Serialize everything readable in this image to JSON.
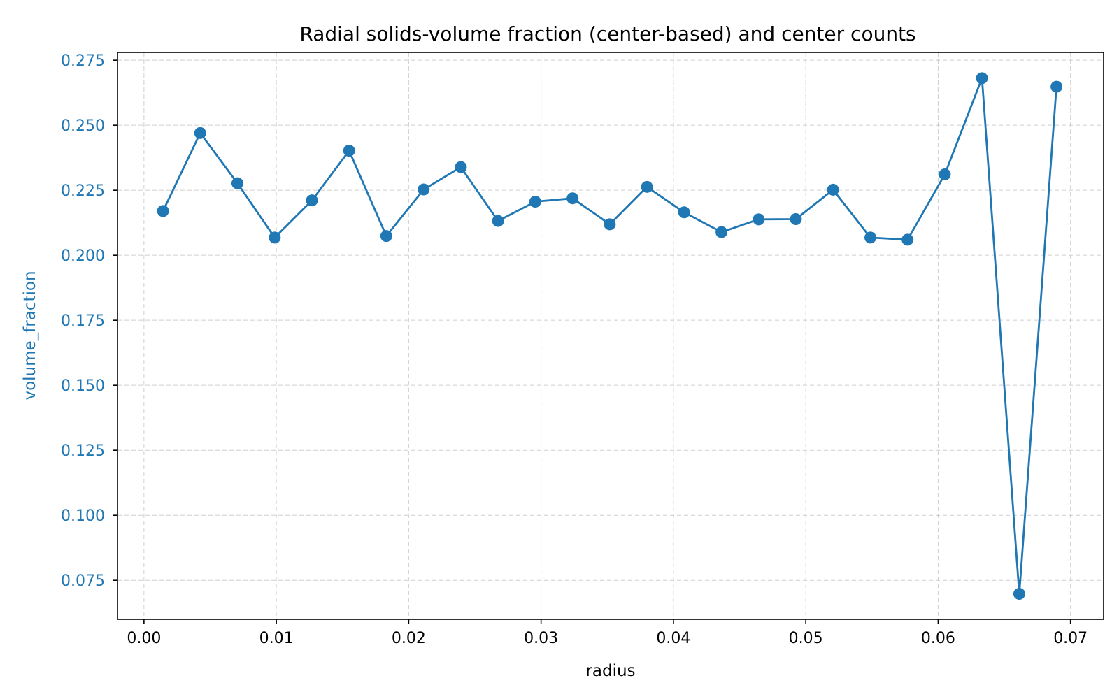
{
  "chart_data": {
    "type": "line",
    "title": "Radial solids-volume fraction (center-based) and center counts",
    "xlabel": "radius",
    "ylabel": "volume_fraction",
    "xlim": [
      -0.002,
      0.0725
    ],
    "ylim": [
      0.06,
      0.278
    ],
    "x_ticks": [
      0.0,
      0.01,
      0.02,
      0.03,
      0.04,
      0.05,
      0.06,
      0.07
    ],
    "x_tick_labels": [
      "0.00",
      "0.01",
      "0.02",
      "0.03",
      "0.04",
      "0.05",
      "0.06",
      "0.07"
    ],
    "y_ticks": [
      0.075,
      0.1,
      0.125,
      0.15,
      0.175,
      0.2,
      0.225,
      0.25,
      0.275
    ],
    "y_tick_labels": [
      "0.075",
      "0.100",
      "0.125",
      "0.150",
      "0.175",
      "0.200",
      "0.225",
      "0.250",
      "0.275"
    ],
    "grid": true,
    "series": [
      {
        "color": "#1f77b4",
        "marker": "circle",
        "x": [
          0.00144,
          0.00425,
          0.00706,
          0.00988,
          0.01269,
          0.0155,
          0.01831,
          0.02113,
          0.02394,
          0.02675,
          0.02956,
          0.03238,
          0.03519,
          0.038,
          0.04081,
          0.04363,
          0.04644,
          0.04925,
          0.05206,
          0.05488,
          0.05769,
          0.0605,
          0.06331,
          0.06613,
          0.06894
        ],
        "y": [
          0.217,
          0.247,
          0.2277,
          0.2068,
          0.2211,
          0.2402,
          0.2074,
          0.2253,
          0.2339,
          0.2132,
          0.2206,
          0.2219,
          0.2119,
          0.2263,
          0.2165,
          0.2089,
          0.2138,
          0.2139,
          0.2252,
          0.2068,
          0.206,
          0.2311,
          0.2681,
          0.0698,
          0.2648
        ]
      }
    ]
  },
  "colors": {
    "series": "#1f77b4",
    "axis": "#000000",
    "grid": "#b0b0b0"
  }
}
